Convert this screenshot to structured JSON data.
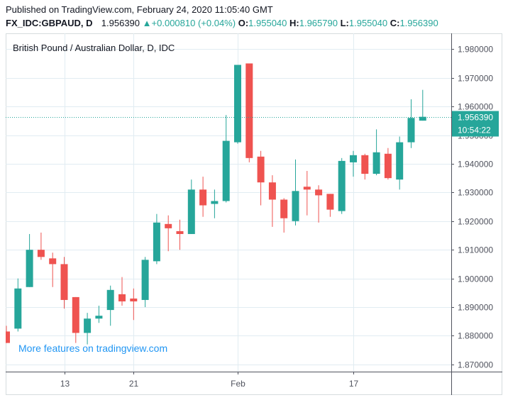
{
  "header": {
    "published": "Published on TradingView.com, February 24, 2020 11:05:40 GMT",
    "symbol": "FX_IDC:GBPAUD, D",
    "last": "1.956390",
    "change_arrow": "▲",
    "change": "+0.000810 (+0.04%)",
    "o_label": "O:",
    "o_value": "1.955040",
    "h_label": "H:",
    "h_value": "1.965790",
    "l_label": "L:",
    "l_value": "1.955040",
    "c_label": "C:",
    "c_value": "1.956390"
  },
  "chart_title": "British Pound / Australian Dollar, D, IDC",
  "watermark": "More features on tradingview.com",
  "price_tag": {
    "value": "1.956390",
    "time": "10:54:22"
  },
  "colors": {
    "up": "#26a69a",
    "down": "#ef5350",
    "grid": "#e1ecf2",
    "axis": "#50535e",
    "watermark": "#2196f3",
    "price_tag_bg": "#26a69a"
  },
  "chart_data": {
    "type": "candlestick",
    "title": "British Pound / Australian Dollar, D, IDC",
    "x_tick_labels": [
      "13",
      "21",
      "Feb",
      "17"
    ],
    "y_tick_labels": [
      "1.870000",
      "1.880000",
      "1.890000",
      "1.900000",
      "1.910000",
      "1.920000",
      "1.930000",
      "1.940000",
      "1.950000",
      "1.960000",
      "1.970000",
      "1.980000"
    ],
    "ylim": [
      1.8675,
      1.9855
    ],
    "grid": true,
    "last_price_line": 1.95639,
    "series": [
      {
        "date": "2020-01-06",
        "open": 1.8815,
        "high": 1.8835,
        "low": 1.8775,
        "close": 1.8775
      },
      {
        "date": "2020-01-07",
        "open": 1.8825,
        "high": 1.9,
        "low": 1.8815,
        "close": 1.8965
      },
      {
        "date": "2020-01-08",
        "open": 1.897,
        "high": 1.9155,
        "low": 1.897,
        "close": 1.91
      },
      {
        "date": "2020-01-09",
        "open": 1.91,
        "high": 1.916,
        "low": 1.9065,
        "close": 1.9075
      },
      {
        "date": "2020-01-10",
        "open": 1.907,
        "high": 1.909,
        "low": 1.897,
        "close": 1.905
      },
      {
        "date": "2020-01-13",
        "open": 1.905,
        "high": 1.9075,
        "low": 1.8895,
        "close": 1.8925
      },
      {
        "date": "2020-01-14",
        "open": 1.8935,
        "high": 1.8935,
        "low": 1.8775,
        "close": 1.881
      },
      {
        "date": "2020-01-15",
        "open": 1.881,
        "high": 1.888,
        "low": 1.877,
        "close": 1.886
      },
      {
        "date": "2020-01-16",
        "open": 1.886,
        "high": 1.8905,
        "low": 1.8845,
        "close": 1.887
      },
      {
        "date": "2020-01-17",
        "open": 1.889,
        "high": 1.8975,
        "low": 1.8835,
        "close": 1.896
      },
      {
        "date": "2020-01-20",
        "open": 1.8945,
        "high": 1.9005,
        "low": 1.8905,
        "close": 1.892
      },
      {
        "date": "2020-01-21",
        "open": 1.893,
        "high": 1.8965,
        "low": 1.8855,
        "close": 1.892
      },
      {
        "date": "2020-01-22",
        "open": 1.8925,
        "high": 1.9075,
        "low": 1.89,
        "close": 1.9065
      },
      {
        "date": "2020-01-23",
        "open": 1.906,
        "high": 1.9225,
        "low": 1.905,
        "close": 1.9195
      },
      {
        "date": "2020-01-24",
        "open": 1.919,
        "high": 1.922,
        "low": 1.9095,
        "close": 1.9175
      },
      {
        "date": "2020-01-27",
        "open": 1.9165,
        "high": 1.9205,
        "low": 1.91,
        "close": 1.9155
      },
      {
        "date": "2020-01-28",
        "open": 1.9155,
        "high": 1.9345,
        "low": 1.9155,
        "close": 1.931
      },
      {
        "date": "2020-01-29",
        "open": 1.931,
        "high": 1.9355,
        "low": 1.9215,
        "close": 1.9255
      },
      {
        "date": "2020-01-30",
        "open": 1.926,
        "high": 1.931,
        "low": 1.921,
        "close": 1.927
      },
      {
        "date": "2020-01-31",
        "open": 1.927,
        "high": 1.957,
        "low": 1.9265,
        "close": 1.948
      },
      {
        "date": "2020-02-03",
        "open": 1.9475,
        "high": 1.9745,
        "low": 1.947,
        "close": 1.9745
      },
      {
        "date": "2020-02-04",
        "open": 1.975,
        "high": 1.975,
        "low": 1.9405,
        "close": 1.942
      },
      {
        "date": "2020-02-05",
        "open": 1.9425,
        "high": 1.9445,
        "low": 1.9255,
        "close": 1.9335
      },
      {
        "date": "2020-02-06",
        "open": 1.9335,
        "high": 1.936,
        "low": 1.918,
        "close": 1.9275
      },
      {
        "date": "2020-02-07",
        "open": 1.9275,
        "high": 1.928,
        "low": 1.916,
        "close": 1.921
      },
      {
        "date": "2020-02-10",
        "open": 1.92,
        "high": 1.9415,
        "low": 1.9185,
        "close": 1.9305
      },
      {
        "date": "2020-02-11",
        "open": 1.932,
        "high": 1.9375,
        "low": 1.922,
        "close": 1.931
      },
      {
        "date": "2020-02-12",
        "open": 1.931,
        "high": 1.9325,
        "low": 1.9195,
        "close": 1.929
      },
      {
        "date": "2020-02-13",
        "open": 1.9295,
        "high": 1.9295,
        "low": 1.9215,
        "close": 1.924
      },
      {
        "date": "2020-02-14",
        "open": 1.9235,
        "high": 1.942,
        "low": 1.9225,
        "close": 1.941
      },
      {
        "date": "2020-02-17",
        "open": 1.9405,
        "high": 1.9445,
        "low": 1.9355,
        "close": 1.943
      },
      {
        "date": "2020-02-18",
        "open": 1.943,
        "high": 1.9435,
        "low": 1.9345,
        "close": 1.9365
      },
      {
        "date": "2020-02-19",
        "open": 1.9365,
        "high": 1.952,
        "low": 1.936,
        "close": 1.944
      },
      {
        "date": "2020-02-20",
        "open": 1.9435,
        "high": 1.9455,
        "low": 1.9345,
        "close": 1.935
      },
      {
        "date": "2020-02-21",
        "open": 1.9345,
        "high": 1.9495,
        "low": 1.931,
        "close": 1.9475
      },
      {
        "date": "2020-02-23",
        "open": 1.9475,
        "high": 1.9625,
        "low": 1.9455,
        "close": 1.956
      },
      {
        "date": "2020-02-24",
        "open": 1.95504,
        "high": 1.96579,
        "low": 1.95504,
        "close": 1.95639
      }
    ]
  }
}
